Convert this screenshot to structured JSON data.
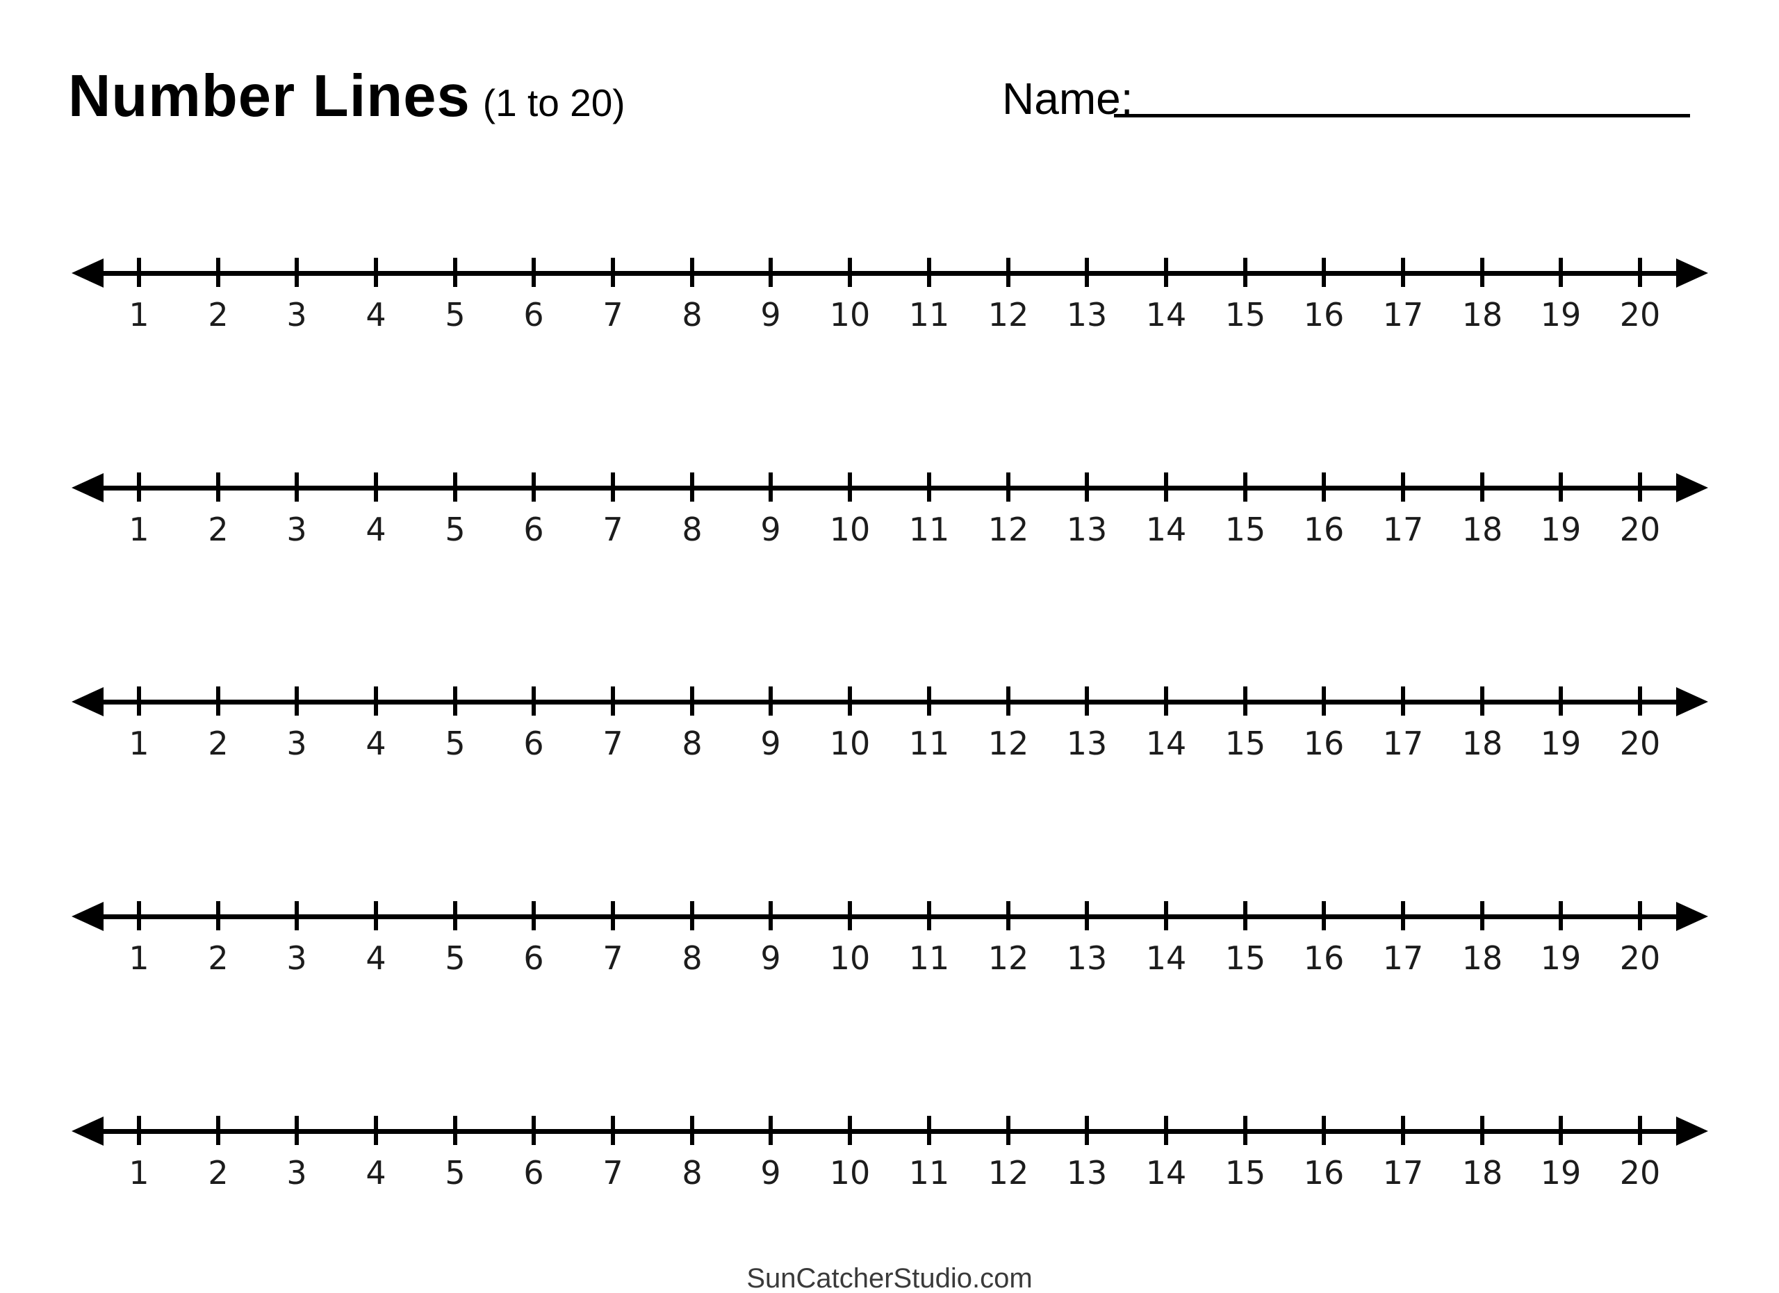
{
  "header": {
    "title": "Number Lines",
    "subtitle": "(1 to 20)",
    "name_label": "Name:"
  },
  "number_lines": {
    "count": 5,
    "start": 1,
    "end": 20,
    "labels": [
      "1",
      "2",
      "3",
      "4",
      "5",
      "6",
      "7",
      "8",
      "9",
      "10",
      "11",
      "12",
      "13",
      "14",
      "15",
      "16",
      "17",
      "18",
      "19",
      "20"
    ]
  },
  "footer": {
    "credit": "SunCatcherStudio.com"
  },
  "colors": {
    "ink": "#000000",
    "number_label": "#1c1c1c",
    "footer_text": "#3a3a3a"
  }
}
